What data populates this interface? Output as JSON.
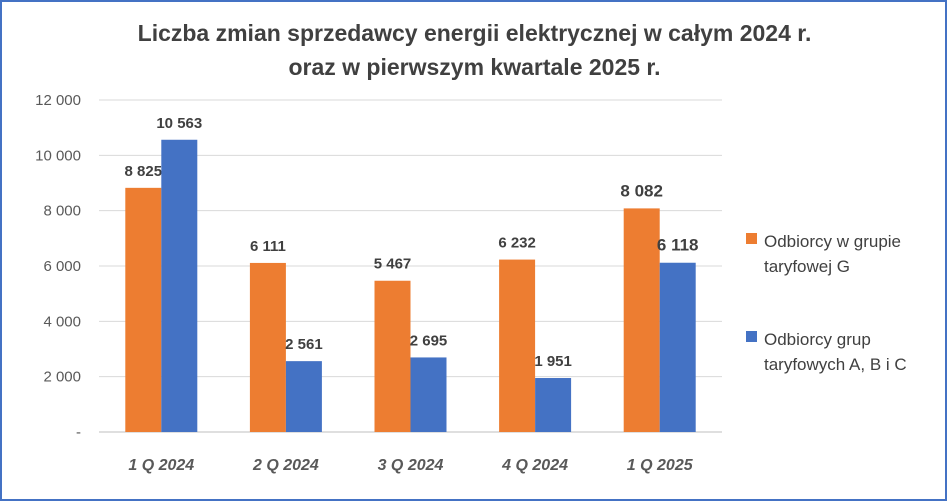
{
  "chart_data": {
    "type": "bar",
    "title": [
      "Liczba zmian sprzedawcy energii elektrycznej w całym 2024 r.",
      "oraz w pierwszym kwartale 2025 r."
    ],
    "categories": [
      "1 Q 2024",
      "2 Q 2024",
      "3 Q 2024",
      "4 Q 2024",
      "1 Q 2025"
    ],
    "series": [
      {
        "name": "Odbiorcy w grupie taryfowej G",
        "color": "#ed7d31",
        "values": [
          8825,
          6111,
          5467,
          6232,
          8082
        ],
        "labels": [
          "8 825",
          "6 111",
          "5 467",
          "6 232",
          "8 082"
        ]
      },
      {
        "name": "Odbiorcy grup taryfowych A, B i C",
        "color": "#4472c4",
        "values": [
          10563,
          2561,
          2695,
          1951,
          6118
        ],
        "labels": [
          "10 563",
          "2 561",
          "2 695",
          "1 951",
          "6 118"
        ]
      }
    ],
    "ylim": [
      0,
      12000
    ],
    "yticks": [
      0,
      2000,
      4000,
      6000,
      8000,
      10000,
      12000
    ],
    "ytick_labels": [
      "-",
      "2 000",
      "4 000",
      "6 000",
      "8 000",
      "10 000",
      "12 000"
    ],
    "grid": true,
    "legend_position": "right",
    "xlabel": "",
    "ylabel": ""
  }
}
